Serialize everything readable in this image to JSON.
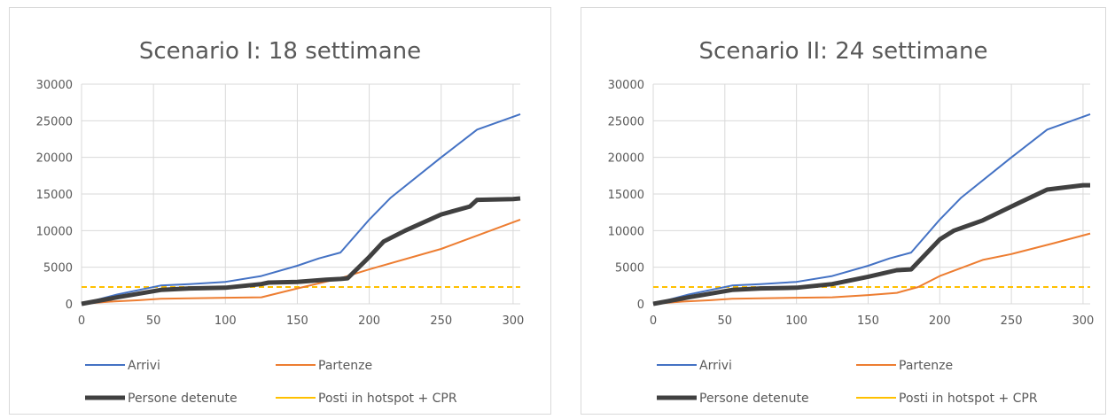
{
  "chart_data": [
    {
      "type": "line",
      "title": "Scenario I: 18 settimane",
      "xlabel": "",
      "ylabel": "",
      "xlim": [
        0,
        305
      ],
      "ylim": [
        0,
        30000
      ],
      "xticks": [
        "0",
        "50",
        "100",
        "150",
        "200",
        "250",
        "300"
      ],
      "yticks": [
        "0",
        "5000",
        "10000",
        "15000",
        "20000",
        "25000",
        "30000"
      ],
      "grid": true,
      "legend": "bottom",
      "series": [
        {
          "name": "Arrivi",
          "color": "#4472C4",
          "width": 2,
          "x": [
            0,
            25,
            55,
            75,
            100,
            125,
            150,
            165,
            180,
            200,
            215,
            250,
            275,
            305
          ],
          "y": [
            0,
            1300,
            2500,
            2700,
            3000,
            3800,
            5200,
            6200,
            7000,
            11500,
            14500,
            20000,
            23800,
            25900
          ]
        },
        {
          "name": "Partenze",
          "color": "#ED7D31",
          "width": 2,
          "x": [
            0,
            20,
            40,
            55,
            125,
            150,
            180,
            200,
            250,
            305
          ],
          "y": [
            0,
            300,
            500,
            700,
            900,
            2100,
            3500,
            4700,
            7500,
            11500
          ]
        },
        {
          "name": "Persone detenute",
          "color": "#404040",
          "width": 5,
          "x": [
            0,
            25,
            55,
            75,
            100,
            125,
            130,
            150,
            170,
            180,
            185,
            200,
            210,
            225,
            250,
            270,
            275,
            300,
            305
          ],
          "y": [
            0,
            900,
            1900,
            2100,
            2200,
            2700,
            2900,
            3000,
            3300,
            3400,
            3500,
            6400,
            8500,
            10000,
            12200,
            13300,
            14200,
            14300,
            14400
          ]
        },
        {
          "name": "Posti in hotspot + CPR",
          "color": "#FFC000",
          "width": 2,
          "dashed": true,
          "x": [
            0,
            305
          ],
          "y": [
            2300,
            2300
          ]
        }
      ]
    },
    {
      "type": "line",
      "title": "Scenario II: 24 settimane",
      "xlabel": "",
      "ylabel": "",
      "xlim": [
        0,
        305
      ],
      "ylim": [
        0,
        30000
      ],
      "xticks": [
        "0",
        "50",
        "100",
        "150",
        "200",
        "250",
        "300"
      ],
      "yticks": [
        "0",
        "5000",
        "10000",
        "15000",
        "20000",
        "25000",
        "30000"
      ],
      "grid": true,
      "legend": "bottom",
      "series": [
        {
          "name": "Arrivi",
          "color": "#4472C4",
          "width": 2,
          "x": [
            0,
            25,
            55,
            75,
            100,
            125,
            150,
            165,
            180,
            200,
            215,
            250,
            275,
            305
          ],
          "y": [
            0,
            1300,
            2500,
            2700,
            3000,
            3800,
            5200,
            6200,
            7000,
            11500,
            14500,
            20000,
            23800,
            25900
          ]
        },
        {
          "name": "Partenze",
          "color": "#ED7D31",
          "width": 2,
          "x": [
            0,
            20,
            40,
            55,
            125,
            150,
            170,
            185,
            200,
            230,
            250,
            280,
            305
          ],
          "y": [
            0,
            300,
            500,
            700,
            900,
            1200,
            1500,
            2300,
            3800,
            6000,
            6800,
            8300,
            9600
          ]
        },
        {
          "name": "Persone detenute",
          "color": "#404040",
          "width": 5,
          "x": [
            0,
            25,
            55,
            75,
            100,
            125,
            150,
            170,
            180,
            200,
            210,
            230,
            250,
            275,
            300,
            305
          ],
          "y": [
            0,
            900,
            1900,
            2100,
            2200,
            2700,
            3700,
            4600,
            4700,
            8800,
            10000,
            11400,
            13300,
            15600,
            16200,
            16200
          ]
        },
        {
          "name": "Posti in hotspot + CPR",
          "color": "#FFC000",
          "width": 2,
          "dashed": true,
          "x": [
            0,
            305
          ],
          "y": [
            2300,
            2300
          ]
        }
      ]
    }
  ]
}
